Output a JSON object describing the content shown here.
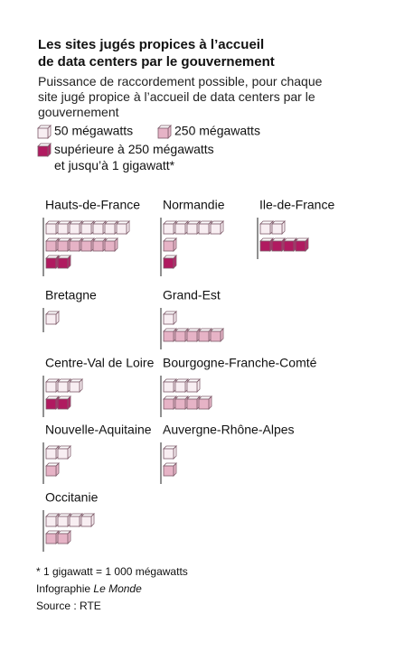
{
  "chart_data": {
    "type": "cube-rows",
    "title": "Les sites jugés propices à l’accueil de data centers par le gouvernement",
    "subtitle": "Puissance de raccordement possible, pour chaque site jugé propice à l’accueil de data centers par le gouvernement",
    "series": [
      {
        "name": "50 mégawatts",
        "color": "#f8eef2"
      },
      {
        "name": "250 mégawatts",
        "color": "#e6b3c6"
      },
      {
        "name": "supérieure à 250 mégawatts et jusqu’à 1 gigawatt*",
        "color": "#b01a60"
      }
    ],
    "regions": [
      {
        "name": "Hauts-de-France",
        "values": [
          7,
          6,
          2
        ]
      },
      {
        "name": "Normandie",
        "values": [
          5,
          1,
          1
        ]
      },
      {
        "name": "Ile-de-France",
        "values": [
          2,
          null,
          4
        ]
      },
      {
        "name": "Bretagne",
        "values": [
          1,
          null,
          null
        ]
      },
      {
        "name": "Grand-Est",
        "values": [
          1,
          5,
          null
        ]
      },
      {
        "name": "Centre-Val de Loire",
        "values": [
          3,
          null,
          2
        ]
      },
      {
        "name": "Bourgogne-Franche-Comté",
        "values": [
          3,
          4,
          null
        ]
      },
      {
        "name": "Nouvelle-Aquitaine",
        "values": [
          2,
          1,
          null
        ]
      },
      {
        "name": "Auvergne-Rhône-Alpes",
        "values": [
          1,
          1,
          null
        ]
      },
      {
        "name": "Occitanie",
        "values": [
          4,
          2,
          null
        ]
      }
    ],
    "note": "* 1 gigawatt = 1 000 mégawatts",
    "credit": "Infographie",
    "credit_name": "Le Monde",
    "source": "Source : RTE"
  }
}
